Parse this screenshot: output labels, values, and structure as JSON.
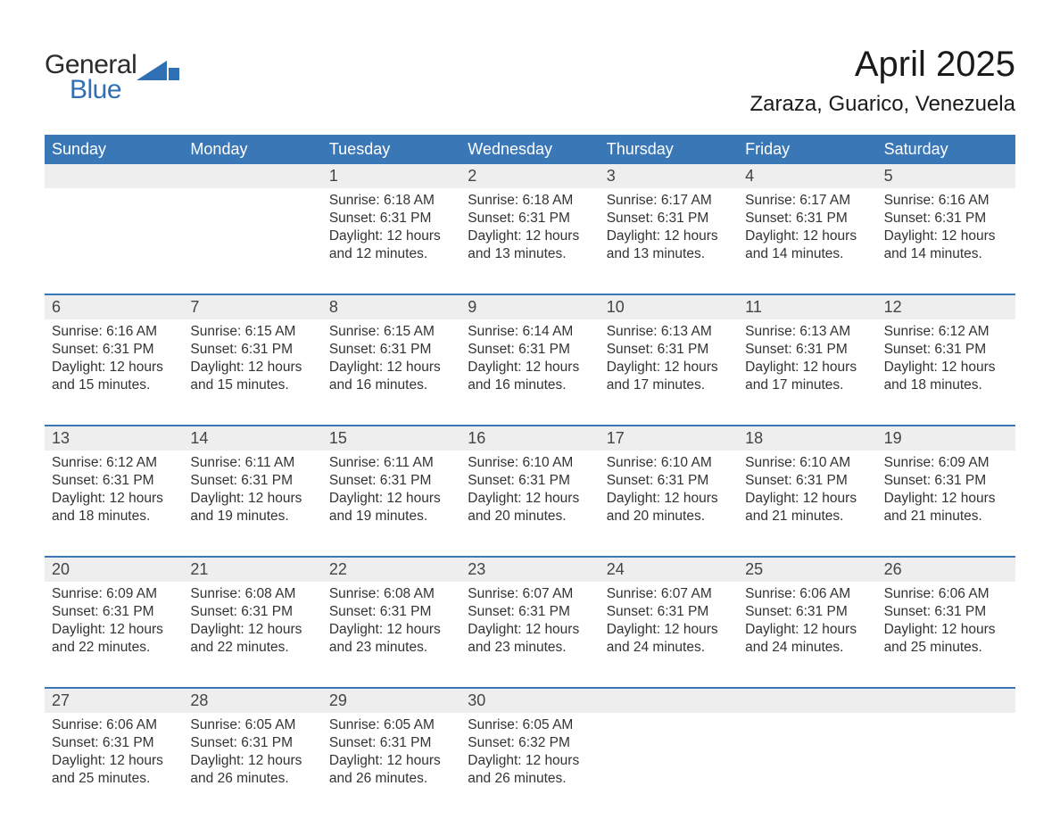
{
  "logo": {
    "general": "General",
    "blue": "Blue"
  },
  "title": "April 2025",
  "subtitle": "Zaraza, Guarico, Venezuela",
  "colors": {
    "header_bg": "#3a77b7",
    "header_text": "#ffffff",
    "date_row_bg": "#eeeeee",
    "week_border": "#3a77b7",
    "text": "#333333",
    "logo_blue": "#2f6fb3"
  },
  "day_headers": [
    "Sunday",
    "Monday",
    "Tuesday",
    "Wednesday",
    "Thursday",
    "Friday",
    "Saturday"
  ],
  "weeks": [
    [
      {
        "date": "",
        "sunrise": "",
        "sunset": "",
        "daylight": ""
      },
      {
        "date": "",
        "sunrise": "",
        "sunset": "",
        "daylight": ""
      },
      {
        "date": "1",
        "sunrise": "Sunrise: 6:18 AM",
        "sunset": "Sunset: 6:31 PM",
        "daylight": "Daylight: 12 hours and 12 minutes."
      },
      {
        "date": "2",
        "sunrise": "Sunrise: 6:18 AM",
        "sunset": "Sunset: 6:31 PM",
        "daylight": "Daylight: 12 hours and 13 minutes."
      },
      {
        "date": "3",
        "sunrise": "Sunrise: 6:17 AM",
        "sunset": "Sunset: 6:31 PM",
        "daylight": "Daylight: 12 hours and 13 minutes."
      },
      {
        "date": "4",
        "sunrise": "Sunrise: 6:17 AM",
        "sunset": "Sunset: 6:31 PM",
        "daylight": "Daylight: 12 hours and 14 minutes."
      },
      {
        "date": "5",
        "sunrise": "Sunrise: 6:16 AM",
        "sunset": "Sunset: 6:31 PM",
        "daylight": "Daylight: 12 hours and 14 minutes."
      }
    ],
    [
      {
        "date": "6",
        "sunrise": "Sunrise: 6:16 AM",
        "sunset": "Sunset: 6:31 PM",
        "daylight": "Daylight: 12 hours and 15 minutes."
      },
      {
        "date": "7",
        "sunrise": "Sunrise: 6:15 AM",
        "sunset": "Sunset: 6:31 PM",
        "daylight": "Daylight: 12 hours and 15 minutes."
      },
      {
        "date": "8",
        "sunrise": "Sunrise: 6:15 AM",
        "sunset": "Sunset: 6:31 PM",
        "daylight": "Daylight: 12 hours and 16 minutes."
      },
      {
        "date": "9",
        "sunrise": "Sunrise: 6:14 AM",
        "sunset": "Sunset: 6:31 PM",
        "daylight": "Daylight: 12 hours and 16 minutes."
      },
      {
        "date": "10",
        "sunrise": "Sunrise: 6:13 AM",
        "sunset": "Sunset: 6:31 PM",
        "daylight": "Daylight: 12 hours and 17 minutes."
      },
      {
        "date": "11",
        "sunrise": "Sunrise: 6:13 AM",
        "sunset": "Sunset: 6:31 PM",
        "daylight": "Daylight: 12 hours and 17 minutes."
      },
      {
        "date": "12",
        "sunrise": "Sunrise: 6:12 AM",
        "sunset": "Sunset: 6:31 PM",
        "daylight": "Daylight: 12 hours and 18 minutes."
      }
    ],
    [
      {
        "date": "13",
        "sunrise": "Sunrise: 6:12 AM",
        "sunset": "Sunset: 6:31 PM",
        "daylight": "Daylight: 12 hours and 18 minutes."
      },
      {
        "date": "14",
        "sunrise": "Sunrise: 6:11 AM",
        "sunset": "Sunset: 6:31 PM",
        "daylight": "Daylight: 12 hours and 19 minutes."
      },
      {
        "date": "15",
        "sunrise": "Sunrise: 6:11 AM",
        "sunset": "Sunset: 6:31 PM",
        "daylight": "Daylight: 12 hours and 19 minutes."
      },
      {
        "date": "16",
        "sunrise": "Sunrise: 6:10 AM",
        "sunset": "Sunset: 6:31 PM",
        "daylight": "Daylight: 12 hours and 20 minutes."
      },
      {
        "date": "17",
        "sunrise": "Sunrise: 6:10 AM",
        "sunset": "Sunset: 6:31 PM",
        "daylight": "Daylight: 12 hours and 20 minutes."
      },
      {
        "date": "18",
        "sunrise": "Sunrise: 6:10 AM",
        "sunset": "Sunset: 6:31 PM",
        "daylight": "Daylight: 12 hours and 21 minutes."
      },
      {
        "date": "19",
        "sunrise": "Sunrise: 6:09 AM",
        "sunset": "Sunset: 6:31 PM",
        "daylight": "Daylight: 12 hours and 21 minutes."
      }
    ],
    [
      {
        "date": "20",
        "sunrise": "Sunrise: 6:09 AM",
        "sunset": "Sunset: 6:31 PM",
        "daylight": "Daylight: 12 hours and 22 minutes."
      },
      {
        "date": "21",
        "sunrise": "Sunrise: 6:08 AM",
        "sunset": "Sunset: 6:31 PM",
        "daylight": "Daylight: 12 hours and 22 minutes."
      },
      {
        "date": "22",
        "sunrise": "Sunrise: 6:08 AM",
        "sunset": "Sunset: 6:31 PM",
        "daylight": "Daylight: 12 hours and 23 minutes."
      },
      {
        "date": "23",
        "sunrise": "Sunrise: 6:07 AM",
        "sunset": "Sunset: 6:31 PM",
        "daylight": "Daylight: 12 hours and 23 minutes."
      },
      {
        "date": "24",
        "sunrise": "Sunrise: 6:07 AM",
        "sunset": "Sunset: 6:31 PM",
        "daylight": "Daylight: 12 hours and 24 minutes."
      },
      {
        "date": "25",
        "sunrise": "Sunrise: 6:06 AM",
        "sunset": "Sunset: 6:31 PM",
        "daylight": "Daylight: 12 hours and 24 minutes."
      },
      {
        "date": "26",
        "sunrise": "Sunrise: 6:06 AM",
        "sunset": "Sunset: 6:31 PM",
        "daylight": "Daylight: 12 hours and 25 minutes."
      }
    ],
    [
      {
        "date": "27",
        "sunrise": "Sunrise: 6:06 AM",
        "sunset": "Sunset: 6:31 PM",
        "daylight": "Daylight: 12 hours and 25 minutes."
      },
      {
        "date": "28",
        "sunrise": "Sunrise: 6:05 AM",
        "sunset": "Sunset: 6:31 PM",
        "daylight": "Daylight: 12 hours and 26 minutes."
      },
      {
        "date": "29",
        "sunrise": "Sunrise: 6:05 AM",
        "sunset": "Sunset: 6:31 PM",
        "daylight": "Daylight: 12 hours and 26 minutes."
      },
      {
        "date": "30",
        "sunrise": "Sunrise: 6:05 AM",
        "sunset": "Sunset: 6:32 PM",
        "daylight": "Daylight: 12 hours and 26 minutes."
      },
      {
        "date": "",
        "sunrise": "",
        "sunset": "",
        "daylight": ""
      },
      {
        "date": "",
        "sunrise": "",
        "sunset": "",
        "daylight": ""
      },
      {
        "date": "",
        "sunrise": "",
        "sunset": "",
        "daylight": ""
      }
    ]
  ]
}
